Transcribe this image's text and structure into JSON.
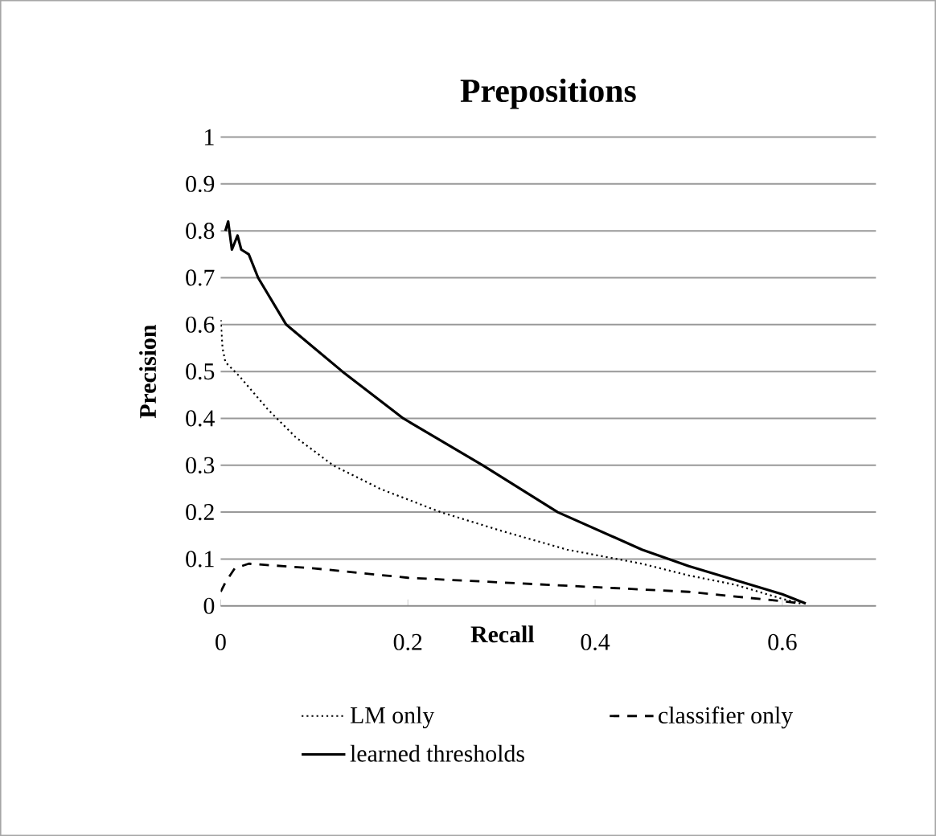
{
  "chart_data": {
    "type": "line",
    "title": "Prepositions",
    "xlabel": "Recall",
    "ylabel": "Precision",
    "xlim": [
      0,
      0.7
    ],
    "xticks": [
      0,
      0.2,
      0.4,
      0.6
    ],
    "ylim": [
      0,
      1
    ],
    "yticks": [
      0,
      0.1,
      0.2,
      0.3,
      0.4,
      0.5,
      0.6,
      0.7,
      0.8,
      0.9,
      1
    ],
    "grid": "y",
    "legend": "bottom",
    "marker": "none",
    "series": [
      {
        "name": "LM only",
        "color": "#000000",
        "line_style": "dotted",
        "x": [
          0,
          0.002,
          0.005,
          0.02,
          0.05,
          0.08,
          0.12,
          0.17,
          0.235,
          0.3,
          0.37,
          0.45,
          0.5,
          0.55,
          0.6,
          0.62
        ],
        "values": [
          0.61,
          0.55,
          0.52,
          0.49,
          0.42,
          0.36,
          0.3,
          0.25,
          0.2,
          0.16,
          0.12,
          0.09,
          0.065,
          0.045,
          0.015,
          0.005
        ]
      },
      {
        "name": "classifier only",
        "color": "#000000",
        "line_style": "dashed",
        "x": [
          0,
          0.005,
          0.015,
          0.03,
          0.1,
          0.2,
          0.3,
          0.4,
          0.5,
          0.6,
          0.62
        ],
        "values": [
          0.03,
          0.05,
          0.08,
          0.09,
          0.08,
          0.06,
          0.05,
          0.04,
          0.03,
          0.01,
          0.005
        ]
      },
      {
        "name": "learned thresholds",
        "color": "#000000",
        "line_style": "solid",
        "x": [
          0.005,
          0.008,
          0.012,
          0.018,
          0.022,
          0.03,
          0.04,
          0.07,
          0.1,
          0.13,
          0.195,
          0.28,
          0.36,
          0.45,
          0.5,
          0.55,
          0.6,
          0.625
        ],
        "values": [
          0.8,
          0.82,
          0.76,
          0.79,
          0.76,
          0.75,
          0.7,
          0.6,
          0.55,
          0.5,
          0.4,
          0.3,
          0.2,
          0.12,
          0.085,
          0.055,
          0.025,
          0.005
        ]
      }
    ]
  }
}
